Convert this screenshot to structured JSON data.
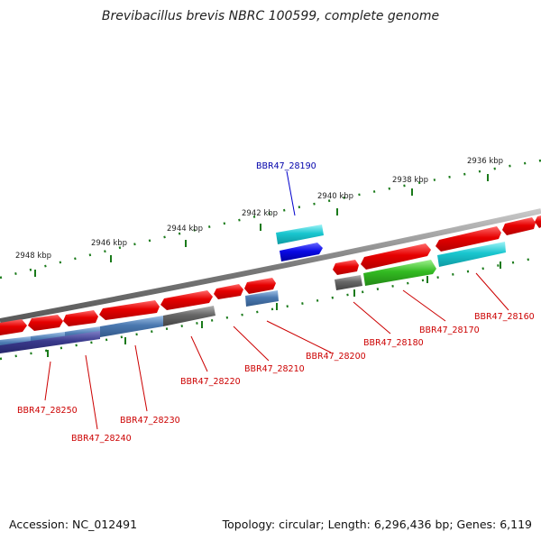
{
  "title": "Brevibacillus brevis NBRC 100599, complete genome",
  "footer": {
    "accession": "Accession: NC_012491",
    "summary": "Topology: circular; Length: 6,296,436 bp; Genes: 6,119"
  },
  "axis": {
    "tick_labels": [
      "2936 kbp",
      "2938 kbp",
      "2940 kbp",
      "2942 kbp",
      "2944 kbp",
      "2946 kbp",
      "2948 kbp"
    ]
  },
  "genes": [
    {
      "label": "BBR47_28160",
      "color": "#cc0000"
    },
    {
      "label": "BBR47_28170",
      "color": "#cc0000"
    },
    {
      "label": "BBR47_28180",
      "color": "#cc0000"
    },
    {
      "label": "BBR47_28190",
      "color": "#0000aa"
    },
    {
      "label": "BBR47_28200",
      "color": "#cc0000"
    },
    {
      "label": "BBR47_28210",
      "color": "#cc0000"
    },
    {
      "label": "BBR47_28220",
      "color": "#cc0000"
    },
    {
      "label": "BBR47_28230",
      "color": "#cc0000"
    },
    {
      "label": "BBR47_28240",
      "color": "#cc0000"
    },
    {
      "label": "BBR47_28250",
      "color": "#cc0000"
    }
  ],
  "colors": {
    "red": "#e60000",
    "cyan": "#19c6cf",
    "blue": "#0a0ae6",
    "steelblue": "#4a78b0",
    "gray": "#666666",
    "green": "#33bb22",
    "darkblue": "#3a3a8c",
    "tick": "#1a7a1a",
    "backbone": "#7a7a7a"
  }
}
